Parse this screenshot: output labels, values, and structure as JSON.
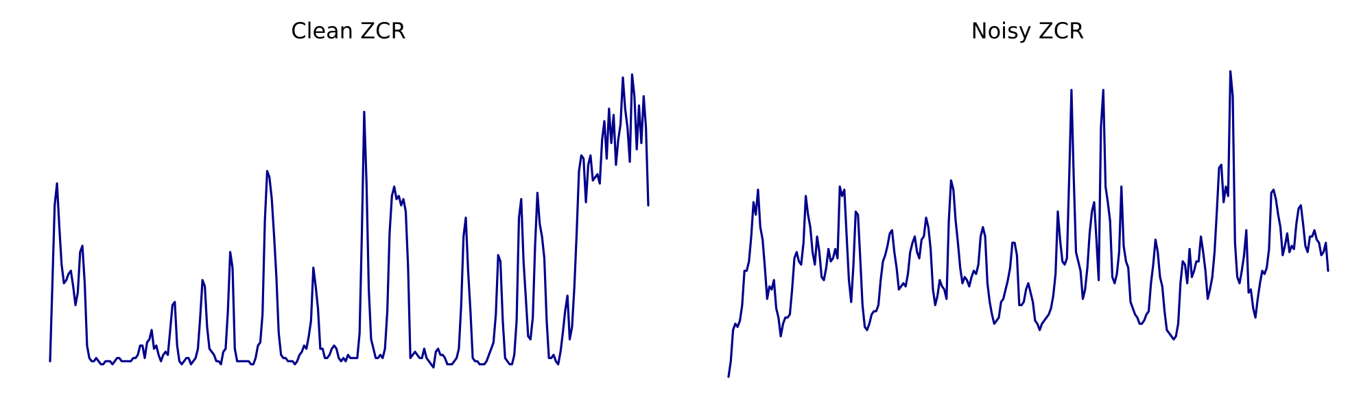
{
  "chart_data": [
    {
      "type": "line",
      "title": "Clean ZCR",
      "xlabel": "",
      "ylabel": "",
      "axes_visible": false,
      "grid": false,
      "legend": "none",
      "ylim": [
        0,
        1
      ],
      "color": "#00008b",
      "series": [
        {
          "values": [
            0.05,
            0.3,
            0.55,
            0.62,
            0.48,
            0.36,
            0.3,
            0.31,
            0.33,
            0.34,
            0.29,
            0.23,
            0.27,
            0.4,
            0.42,
            0.3,
            0.1,
            0.06,
            0.05,
            0.05,
            0.06,
            0.05,
            0.04,
            0.04,
            0.05,
            0.05,
            0.05,
            0.04,
            0.05,
            0.06,
            0.06,
            0.05,
            0.05,
            0.05,
            0.05,
            0.05,
            0.06,
            0.06,
            0.07,
            0.1,
            0.1,
            0.06,
            0.11,
            0.12,
            0.15,
            0.09,
            0.1,
            0.07,
            0.05,
            0.07,
            0.08,
            0.07,
            0.15,
            0.23,
            0.24,
            0.1,
            0.05,
            0.04,
            0.05,
            0.06,
            0.06,
            0.04,
            0.05,
            0.06,
            0.09,
            0.19,
            0.31,
            0.29,
            0.16,
            0.09,
            0.08,
            0.07,
            0.05,
            0.05,
            0.04,
            0.08,
            0.09,
            0.21,
            0.4,
            0.35,
            0.09,
            0.05,
            0.05,
            0.05,
            0.05,
            0.05,
            0.05,
            0.04,
            0.04,
            0.06,
            0.1,
            0.11,
            0.2,
            0.5,
            0.66,
            0.64,
            0.57,
            0.45,
            0.32,
            0.14,
            0.07,
            0.06,
            0.06,
            0.05,
            0.05,
            0.05,
            0.04,
            0.05,
            0.07,
            0.08,
            0.1,
            0.09,
            0.13,
            0.18,
            0.35,
            0.29,
            0.22,
            0.09,
            0.09,
            0.06,
            0.06,
            0.07,
            0.09,
            0.1,
            0.09,
            0.06,
            0.05,
            0.06,
            0.05,
            0.07,
            0.06,
            0.06,
            0.06,
            0.06,
            0.14,
            0.46,
            0.85,
            0.62,
            0.28,
            0.12,
            0.09,
            0.06,
            0.06,
            0.07,
            0.06,
            0.09,
            0.21,
            0.46,
            0.58,
            0.61,
            0.57,
            0.58,
            0.55,
            0.57,
            0.53,
            0.35,
            0.06,
            0.07,
            0.08,
            0.07,
            0.06,
            0.06,
            0.09,
            0.06,
            0.05,
            0.04,
            0.03,
            0.08,
            0.09,
            0.07,
            0.07,
            0.06,
            0.04,
            0.04,
            0.04,
            0.05,
            0.06,
            0.09,
            0.23,
            0.45,
            0.51,
            0.34,
            0.21,
            0.06,
            0.05,
            0.05,
            0.04,
            0.04,
            0.04,
            0.05,
            0.07,
            0.09,
            0.11,
            0.2,
            0.39,
            0.37,
            0.18,
            0.06,
            0.05,
            0.04,
            0.04,
            0.07,
            0.18,
            0.51,
            0.57,
            0.37,
            0.25,
            0.13,
            0.12,
            0.19,
            0.42,
            0.59,
            0.49,
            0.45,
            0.38,
            0.18,
            0.06,
            0.06,
            0.07,
            0.05,
            0.04,
            0.08,
            0.14,
            0.21,
            0.26,
            0.12,
            0.16,
            0.29,
            0.46,
            0.66,
            0.71,
            0.7,
            0.56,
            0.68,
            0.71,
            0.63,
            0.64,
            0.65,
            0.62,
            0.76,
            0.82,
            0.7,
            0.86,
            0.75,
            0.84,
            0.68,
            0.76,
            0.81,
            0.96,
            0.86,
            0.8,
            0.69,
            0.97,
            0.9,
            0.73,
            0.87,
            0.75,
            0.9,
            0.8,
            0.55
          ]
        }
      ]
    },
    {
      "type": "line",
      "title": "Noisy ZCR",
      "xlabel": "",
      "ylabel": "",
      "axes_visible": false,
      "grid": false,
      "legend": "none",
      "ylim": [
        0,
        1
      ],
      "color": "#00008b",
      "series": [
        {
          "values": [
            0.0,
            0.05,
            0.15,
            0.17,
            0.16,
            0.18,
            0.23,
            0.34,
            0.34,
            0.37,
            0.45,
            0.56,
            0.52,
            0.6,
            0.48,
            0.44,
            0.35,
            0.25,
            0.29,
            0.28,
            0.31,
            0.22,
            0.19,
            0.13,
            0.17,
            0.19,
            0.19,
            0.2,
            0.28,
            0.38,
            0.4,
            0.37,
            0.36,
            0.43,
            0.58,
            0.52,
            0.48,
            0.4,
            0.36,
            0.45,
            0.4,
            0.32,
            0.31,
            0.35,
            0.41,
            0.37,
            0.38,
            0.41,
            0.38,
            0.61,
            0.58,
            0.6,
            0.45,
            0.31,
            0.24,
            0.36,
            0.53,
            0.52,
            0.38,
            0.23,
            0.16,
            0.15,
            0.17,
            0.2,
            0.21,
            0.21,
            0.23,
            0.31,
            0.37,
            0.39,
            0.42,
            0.46,
            0.47,
            0.4,
            0.35,
            0.28,
            0.29,
            0.3,
            0.29,
            0.33,
            0.4,
            0.43,
            0.45,
            0.4,
            0.38,
            0.44,
            0.45,
            0.51,
            0.48,
            0.41,
            0.28,
            0.23,
            0.26,
            0.31,
            0.29,
            0.28,
            0.25,
            0.5,
            0.63,
            0.6,
            0.5,
            0.43,
            0.35,
            0.3,
            0.32,
            0.31,
            0.29,
            0.32,
            0.34,
            0.33,
            0.36,
            0.45,
            0.48,
            0.45,
            0.3,
            0.24,
            0.2,
            0.17,
            0.18,
            0.19,
            0.24,
            0.25,
            0.28,
            0.31,
            0.35,
            0.43,
            0.43,
            0.39,
            0.23,
            0.23,
            0.24,
            0.28,
            0.3,
            0.27,
            0.24,
            0.18,
            0.17,
            0.15,
            0.17,
            0.18,
            0.19,
            0.2,
            0.22,
            0.26,
            0.33,
            0.53,
            0.44,
            0.37,
            0.36,
            0.38,
            0.64,
            0.92,
            0.64,
            0.4,
            0.37,
            0.34,
            0.25,
            0.28,
            0.35,
            0.46,
            0.53,
            0.56,
            0.44,
            0.31,
            0.8,
            0.92,
            0.61,
            0.56,
            0.5,
            0.32,
            0.3,
            0.33,
            0.4,
            0.61,
            0.42,
            0.37,
            0.35,
            0.24,
            0.22,
            0.2,
            0.19,
            0.17,
            0.17,
            0.18,
            0.2,
            0.21,
            0.3,
            0.36,
            0.44,
            0.4,
            0.32,
            0.29,
            0.21,
            0.15,
            0.14,
            0.13,
            0.12,
            0.13,
            0.17,
            0.3,
            0.37,
            0.36,
            0.3,
            0.41,
            0.32,
            0.34,
            0.37,
            0.37,
            0.45,
            0.4,
            0.34,
            0.25,
            0.28,
            0.32,
            0.4,
            0.53,
            0.67,
            0.68,
            0.56,
            0.61,
            0.58,
            0.98,
            0.9,
            0.43,
            0.32,
            0.3,
            0.34,
            0.39,
            0.47,
            0.27,
            0.28,
            0.22,
            0.19,
            0.25,
            0.3,
            0.34,
            0.33,
            0.35,
            0.41,
            0.59,
            0.6,
            0.57,
            0.52,
            0.48,
            0.39,
            0.42,
            0.46,
            0.4,
            0.42,
            0.41,
            0.49,
            0.54,
            0.55,
            0.49,
            0.42,
            0.4,
            0.45,
            0.45,
            0.47,
            0.44,
            0.43,
            0.39,
            0.4,
            0.43,
            0.34
          ]
        }
      ]
    }
  ]
}
